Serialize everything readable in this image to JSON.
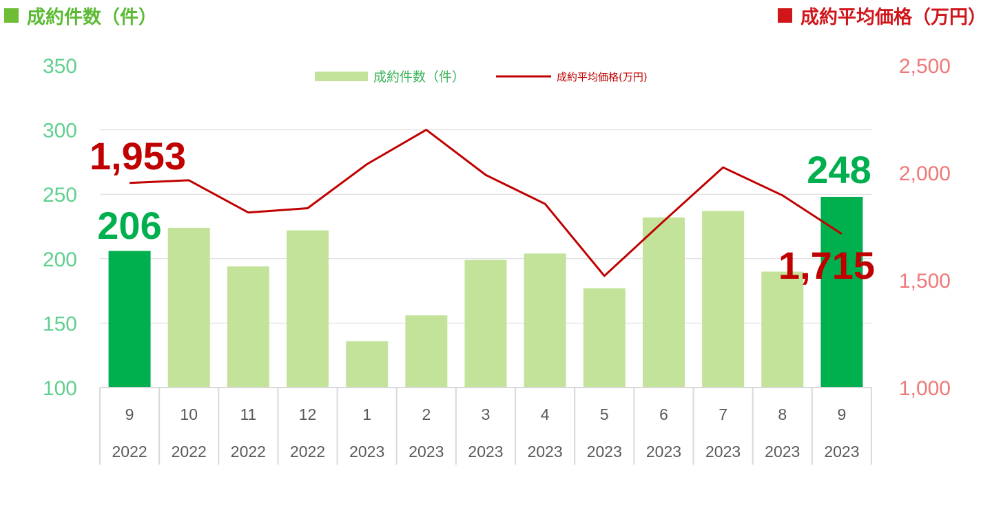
{
  "header": {
    "left_title": "成約件数（件）",
    "right_title": "成約平均価格（万円）"
  },
  "colors": {
    "bar_light": "#c3e39a",
    "bar_highlight": "#00b04f",
    "line": "#c00000",
    "left_axis_text": "#5fcf8f",
    "right_axis_text": "#f07878",
    "left_header": "#5aba32",
    "right_header": "#d0161b"
  },
  "chart_data": {
    "type": "bar",
    "categories": [
      "9",
      "10",
      "11",
      "12",
      "1",
      "2",
      "3",
      "4",
      "5",
      "6",
      "7",
      "8",
      "9"
    ],
    "years": [
      "2022",
      "2022",
      "2022",
      "2022",
      "2023",
      "2023",
      "2023",
      "2023",
      "2023",
      "2023",
      "2023",
      "2023",
      "2023"
    ],
    "highlight_indices": [
      0,
      12
    ],
    "series": [
      {
        "name": "成約件数（件）",
        "type": "bar",
        "axis": "left",
        "values": [
          206,
          224,
          194,
          222,
          136,
          156,
          199,
          204,
          177,
          232,
          237,
          190,
          248
        ]
      },
      {
        "name": "成約平均価格(万円)",
        "type": "line",
        "axis": "right",
        "values": [
          1953,
          1965,
          1815,
          1835,
          2040,
          2200,
          1990,
          1855,
          1520,
          1775,
          2025,
          1895,
          1715
        ]
      }
    ],
    "left_axis": {
      "ylim": [
        100,
        350
      ],
      "ticks": [
        "350",
        "300",
        "250",
        "200",
        "150",
        "100"
      ]
    },
    "right_axis": {
      "ylim": [
        1000,
        2500
      ],
      "ticks": [
        "2,500",
        "2,000",
        "1,500",
        "1,000"
      ]
    },
    "gridlines": true,
    "legend": "top-center",
    "annotations": [
      {
        "label": "206",
        "series": 0,
        "index": 0,
        "color": "#00b04f"
      },
      {
        "label": "248",
        "series": 0,
        "index": 12,
        "color": "#00b04f"
      },
      {
        "label": "1,953",
        "series": 1,
        "index": 0,
        "color": "#c00000"
      },
      {
        "label": "1,715",
        "series": 1,
        "index": 12,
        "color": "#c00000"
      }
    ]
  }
}
